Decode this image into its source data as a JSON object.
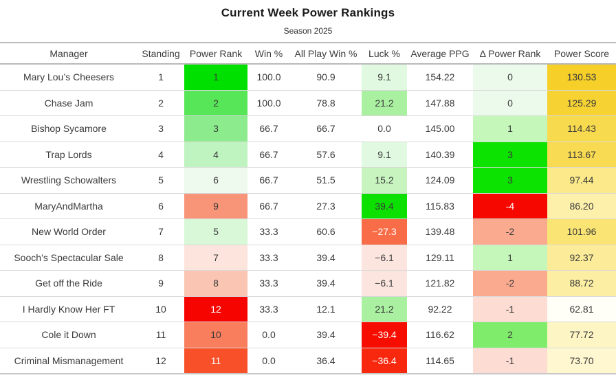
{
  "title": "Current Week Power Rankings",
  "subtitle": "Season 2025",
  "table": {
    "columns": [
      {
        "key": "manager",
        "label": "Manager"
      },
      {
        "key": "standing",
        "label": "Standing"
      },
      {
        "key": "power_rank",
        "label": "Power Rank"
      },
      {
        "key": "win_pct",
        "label": "Win %"
      },
      {
        "key": "all_play",
        "label": "All Play Win %"
      },
      {
        "key": "luck",
        "label": "Luck %"
      },
      {
        "key": "avg_ppg",
        "label": "Average PPG"
      },
      {
        "key": "delta",
        "label": "Δ Power Rank"
      },
      {
        "key": "score",
        "label": "Power Score"
      }
    ],
    "rows": [
      {
        "manager": "Mary Lou’s Cheesers",
        "standing": "1",
        "power_rank": {
          "text": "1",
          "bg": "#00e000"
        },
        "win_pct": "100.0",
        "all_play": "90.9",
        "luck": {
          "text": "9.1",
          "bg": "#e0f9e0"
        },
        "avg_ppg": "154.22",
        "delta": {
          "text": "0",
          "bg": "#ecfaec"
        },
        "score": {
          "text": "130.53",
          "bg": "#f6cf29"
        }
      },
      {
        "manager": "Chase Jam",
        "standing": "2",
        "power_rank": {
          "text": "2",
          "bg": "#57e657"
        },
        "win_pct": "100.0",
        "all_play": "78.8",
        "luck": {
          "text": "21.2",
          "bg": "#aaf0a1"
        },
        "avg_ppg": "147.88",
        "delta": {
          "text": "0",
          "bg": "#ecfaec"
        },
        "score": {
          "text": "125.29",
          "bg": "#f6d233"
        }
      },
      {
        "manager": "Bishop Sycamore",
        "standing": "3",
        "power_rank": {
          "text": "3",
          "bg": "#8ceb8c"
        },
        "win_pct": "66.7",
        "all_play": "66.7",
        "luck": {
          "text": "0.0",
          "bg": "#ffffff"
        },
        "avg_ppg": "145.00",
        "delta": {
          "text": "1",
          "bg": "#c5f7bb"
        },
        "score": {
          "text": "114.43",
          "bg": "#f8da4f"
        }
      },
      {
        "manager": "Trap Lords",
        "standing": "4",
        "power_rank": {
          "text": "4",
          "bg": "#bff3bf"
        },
        "win_pct": "66.7",
        "all_play": "57.6",
        "luck": {
          "text": "9.1",
          "bg": "#e0f9e0"
        },
        "avg_ppg": "140.39",
        "delta": {
          "text": "3",
          "bg": "#0ce300"
        },
        "score": {
          "text": "113.67",
          "bg": "#f8db52"
        }
      },
      {
        "manager": "Wrestling Schowalters",
        "standing": "5",
        "power_rank": {
          "text": "6",
          "bg": "#eefaee"
        },
        "win_pct": "66.7",
        "all_play": "51.5",
        "luck": {
          "text": "15.2",
          "bg": "#c7f4bf"
        },
        "avg_ppg": "124.09",
        "delta": {
          "text": "3",
          "bg": "#0ce300"
        },
        "score": {
          "text": "97.44",
          "bg": "#fbe98a"
        }
      },
      {
        "manager": "MaryAndMartha",
        "standing": "6",
        "power_rank": {
          "text": "9",
          "bg": "#f89578"
        },
        "win_pct": "66.7",
        "all_play": "27.3",
        "luck": {
          "text": "39.4",
          "bg": "#0be000"
        },
        "avg_ppg": "115.83",
        "delta": {
          "text": "-4",
          "bg": "#f60800",
          "fg": "#ffffff"
        },
        "score": {
          "text": "86.20",
          "bg": "#fdf0ab"
        }
      },
      {
        "manager": "New World Order",
        "standing": "7",
        "power_rank": {
          "text": "5",
          "bg": "#d8f8d8"
        },
        "win_pct": "33.3",
        "all_play": "60.6",
        "luck": {
          "text": "−27.3",
          "bg": "#f96c48",
          "fg": "#ffffff"
        },
        "avg_ppg": "139.48",
        "delta": {
          "text": "-2",
          "bg": "#faaa8f"
        },
        "score": {
          "text": "101.96",
          "bg": "#fae473"
        }
      },
      {
        "manager": "Sooch’s Spectacular Sale",
        "standing": "8",
        "power_rank": {
          "text": "7",
          "bg": "#fde4dd"
        },
        "win_pct": "33.3",
        "all_play": "39.4",
        "luck": {
          "text": "−6.1",
          "bg": "#fce5de"
        },
        "avg_ppg": "129.11",
        "delta": {
          "text": "1",
          "bg": "#c5f7bb"
        },
        "score": {
          "text": "92.37",
          "bg": "#fcec99"
        }
      },
      {
        "manager": "Get off the Ride",
        "standing": "9",
        "power_rank": {
          "text": "8",
          "bg": "#fac5b2"
        },
        "win_pct": "33.3",
        "all_play": "39.4",
        "luck": {
          "text": "−6.1",
          "bg": "#fce5de"
        },
        "avg_ppg": "121.82",
        "delta": {
          "text": "-2",
          "bg": "#faaa8f"
        },
        "score": {
          "text": "88.72",
          "bg": "#fceea2"
        }
      },
      {
        "manager": "I Hardly Know Her FT",
        "standing": "10",
        "power_rank": {
          "text": "12",
          "bg": "#f50400",
          "fg": "#ffffff"
        },
        "win_pct": "33.3",
        "all_play": "12.1",
        "luck": {
          "text": "21.2",
          "bg": "#aaf0a1"
        },
        "avg_ppg": "92.22",
        "delta": {
          "text": "-1",
          "bg": "#fdddd3"
        },
        "score": {
          "text": "62.81",
          "bg": "#fffef7"
        }
      },
      {
        "manager": "Cole it Down",
        "standing": "11",
        "power_rank": {
          "text": "10",
          "bg": "#f97e5d"
        },
        "win_pct": "0.0",
        "all_play": "39.4",
        "luck": {
          "text": "−39.4",
          "bg": "#f60d00",
          "fg": "#ffffff"
        },
        "avg_ppg": "116.62",
        "delta": {
          "text": "2",
          "bg": "#80ec6b"
        },
        "score": {
          "text": "77.72",
          "bg": "#fdf5c4"
        }
      },
      {
        "manager": "Criminal Mismanagement",
        "standing": "12",
        "power_rank": {
          "text": "11",
          "bg": "#f8512a",
          "fg": "#ffffff"
        },
        "win_pct": "0.0",
        "all_play": "36.4",
        "luck": {
          "text": "−36.4",
          "bg": "#f8280f",
          "fg": "#ffffff"
        },
        "avg_ppg": "114.65",
        "delta": {
          "text": "-1",
          "bg": "#fdddd3"
        },
        "score": {
          "text": "73.70",
          "bg": "#fef7d0"
        }
      }
    ]
  },
  "chart_data": {
    "type": "table",
    "title": "Current Week Power Rankings",
    "subtitle": "Season 2025",
    "columns": [
      "Manager",
      "Standing",
      "Power Rank",
      "Win %",
      "All Play Win %",
      "Luck %",
      "Average PPG",
      "Δ Power Rank",
      "Power Score"
    ],
    "rows": [
      [
        "Mary Lou’s Cheesers",
        1,
        1,
        100.0,
        90.9,
        9.1,
        154.22,
        0,
        130.53
      ],
      [
        "Chase Jam",
        2,
        2,
        100.0,
        78.8,
        21.2,
        147.88,
        0,
        125.29
      ],
      [
        "Bishop Sycamore",
        3,
        3,
        66.7,
        66.7,
        0.0,
        145.0,
        1,
        114.43
      ],
      [
        "Trap Lords",
        4,
        4,
        66.7,
        57.6,
        9.1,
        140.39,
        3,
        113.67
      ],
      [
        "Wrestling Schowalters",
        5,
        6,
        66.7,
        51.5,
        15.2,
        124.09,
        3,
        97.44
      ],
      [
        "MaryAndMartha",
        6,
        9,
        66.7,
        27.3,
        39.4,
        115.83,
        -4,
        86.2
      ],
      [
        "New World Order",
        7,
        5,
        33.3,
        60.6,
        -27.3,
        139.48,
        -2,
        101.96
      ],
      [
        "Sooch’s Spectacular Sale",
        8,
        7,
        33.3,
        39.4,
        -6.1,
        129.11,
        1,
        92.37
      ],
      [
        "Get off the Ride",
        9,
        8,
        33.3,
        39.4,
        -6.1,
        121.82,
        -2,
        88.72
      ],
      [
        "I Hardly Know Her FT",
        10,
        12,
        33.3,
        12.1,
        21.2,
        92.22,
        -1,
        62.81
      ],
      [
        "Cole it Down",
        11,
        10,
        0.0,
        39.4,
        -39.4,
        116.62,
        2,
        77.72
      ],
      [
        "Criminal Mismanagement",
        12,
        11,
        0.0,
        36.4,
        -36.4,
        114.65,
        -1,
        73.7
      ]
    ]
  }
}
